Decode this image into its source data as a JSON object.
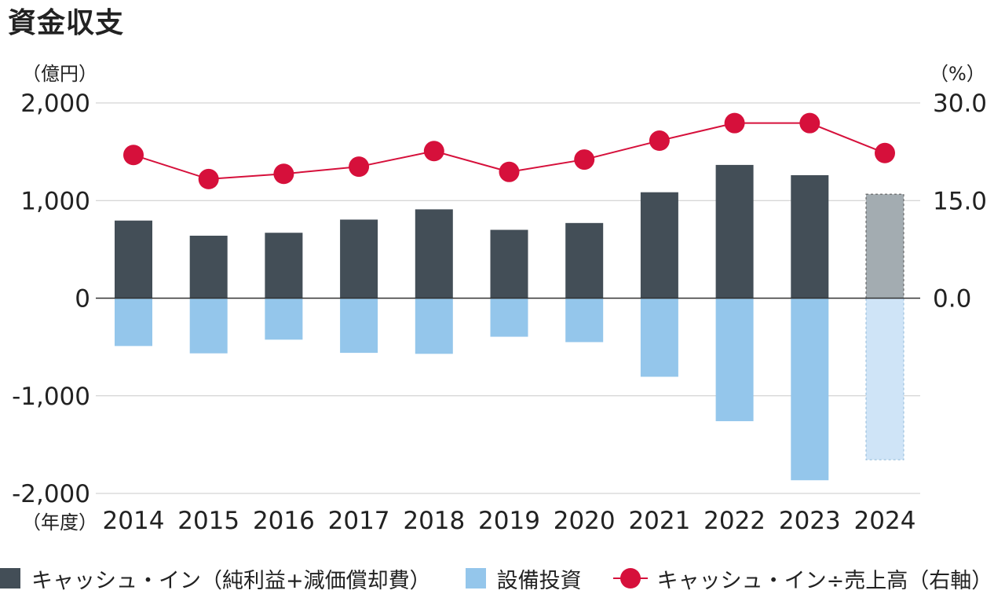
{
  "title": "資金収支",
  "colors": {
    "cash_in": "#434e57",
    "cash_in_forecast": "#a3acb1",
    "capex": "#94c6eb",
    "capex_forecast": "#cfe4f7",
    "ratio": "#d6103b",
    "gridline": "#c8c8c8",
    "zeroline": "#333333"
  },
  "legend": {
    "cash_in": "キャッシュ・イン（純利益+減価償却費）",
    "capex": "設備投資",
    "ratio": "キャッシュ・イン÷売上高（右軸）"
  },
  "chart_data": {
    "type": "bar",
    "title": "資金収支",
    "x_axis_label": "（年度）",
    "y_axis_left_unit": "（億円）",
    "y_axis_right_unit": "（%）",
    "y_left_range": [
      -2000,
      2000
    ],
    "y_right_range": [
      0,
      30
    ],
    "y_left_ticks": [
      "2,000",
      "1,000",
      "0",
      "-1,000",
      "-2,000"
    ],
    "y_right_ticks": [
      "30.0",
      "15.0",
      "0.0"
    ],
    "grid": true,
    "legend_position": "bottom",
    "categories": [
      "2014",
      "2015",
      "2016",
      "2017",
      "2018",
      "2019",
      "2020",
      "2021",
      "2022",
      "2023",
      "2024"
    ],
    "forecast_category": "2024",
    "series": [
      {
        "name": "キャッシュ・イン（純利益+減価償却費）",
        "type": "bar",
        "axis": "left",
        "values": [
          795,
          640,
          670,
          805,
          910,
          700,
          770,
          1085,
          1365,
          1260,
          1065
        ]
      },
      {
        "name": "設備投資",
        "type": "bar",
        "axis": "left",
        "values": [
          -490,
          -565,
          -425,
          -560,
          -570,
          -395,
          -450,
          -805,
          -1260,
          -1865,
          -1655
        ]
      },
      {
        "name": "キャッシュ・イン÷売上高（右軸）",
        "type": "line",
        "axis": "right",
        "values": [
          22.0,
          18.3,
          19.1,
          20.2,
          22.6,
          19.4,
          21.3,
          24.2,
          26.9,
          26.9,
          22.3
        ]
      }
    ]
  }
}
